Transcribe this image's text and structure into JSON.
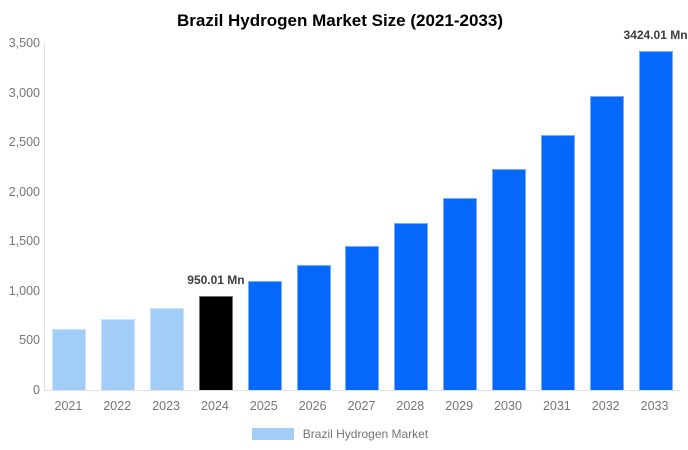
{
  "title": "Brazil Hydrogen Market Size (2021-2033)",
  "legend": {
    "label": "Brazil Hydrogen Market"
  },
  "colors": {
    "light_blue": "#A3CDF9",
    "highlight_black": "#000000",
    "blue": "#0667FB",
    "title_text": "#000000",
    "axis_text": "#757575",
    "annotation_text": "#3d3d3d",
    "axis_line": "#e0e0e0"
  },
  "chart_data": {
    "type": "bar",
    "title": "Brazil Hydrogen Market Size (2021-2033)",
    "xlabel": "",
    "ylabel": "",
    "categories": [
      "2021",
      "2022",
      "2023",
      "2024",
      "2025",
      "2026",
      "2027",
      "2028",
      "2029",
      "2030",
      "2031",
      "2032",
      "2033"
    ],
    "series": [
      {
        "name": "Brazil Hydrogen Market",
        "values": [
          620,
          715,
          824,
          950.01,
          1095,
          1263,
          1457,
          1680,
          1937,
          2233,
          2575,
          2969,
          3424.01
        ]
      }
    ],
    "bar_colors": [
      "#A3CDF9",
      "#A3CDF9",
      "#A3CDF9",
      "#000000",
      "#0667FB",
      "#0667FB",
      "#0667FB",
      "#0667FB",
      "#0667FB",
      "#0667FB",
      "#0667FB",
      "#0667FB",
      "#0667FB"
    ],
    "ylim": [
      0,
      3500
    ],
    "ytick_interval": 500,
    "ytick_labels": [
      "0",
      "500",
      "1,000",
      "1,500",
      "2,000",
      "2,500",
      "3,000",
      "3,500"
    ],
    "grid": false,
    "legend_position": "bottom",
    "data_labels": [
      {
        "category": "2024",
        "text": "950.01 Mn"
      },
      {
        "category": "2033",
        "text": "3424.01 Mn"
      }
    ]
  }
}
